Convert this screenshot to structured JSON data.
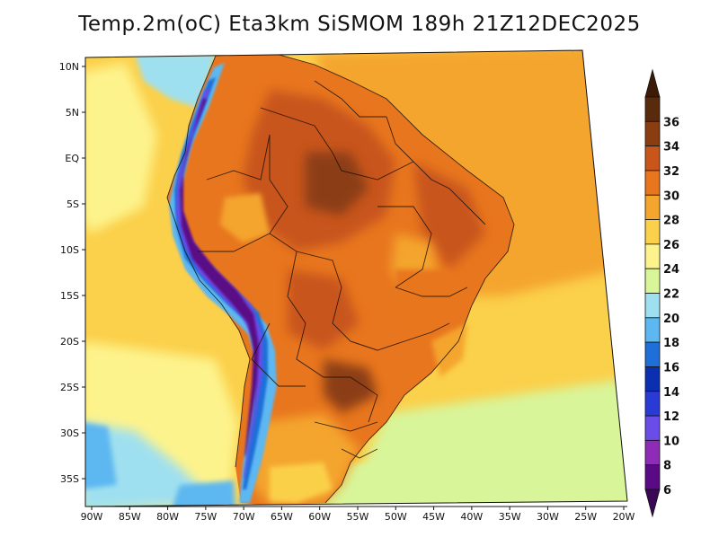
{
  "title": "Temp.2m(oC) Eta3km SiSMOM 189h 21Z12DEC2025",
  "map": {
    "lon_range": [
      -91,
      -19
    ],
    "lat_range": [
      -38,
      12
    ],
    "x_ticks": [
      {
        "lon": -90,
        "label": "90W"
      },
      {
        "lon": -85,
        "label": "85W"
      },
      {
        "lon": -80,
        "label": "80W"
      },
      {
        "lon": -75,
        "label": "75W"
      },
      {
        "lon": -70,
        "label": "70W"
      },
      {
        "lon": -65,
        "label": "65W"
      },
      {
        "lon": -60,
        "label": "60W"
      },
      {
        "lon": -55,
        "label": "55W"
      },
      {
        "lon": -50,
        "label": "50W"
      },
      {
        "lon": -45,
        "label": "45W"
      },
      {
        "lon": -40,
        "label": "40W"
      },
      {
        "lon": -35,
        "label": "35W"
      },
      {
        "lon": -30,
        "label": "30W"
      },
      {
        "lon": -25,
        "label": "25W"
      },
      {
        "lon": -20,
        "label": "20W"
      }
    ],
    "y_ticks": [
      {
        "lat": 10,
        "label": "10N"
      },
      {
        "lat": 5,
        "label": "5N"
      },
      {
        "lat": 0,
        "label": "EQ"
      },
      {
        "lat": -5,
        "label": "5S"
      },
      {
        "lat": -10,
        "label": "10S"
      },
      {
        "lat": -15,
        "label": "15S"
      },
      {
        "lat": -20,
        "label": "20S"
      },
      {
        "lat": -25,
        "label": "25S"
      },
      {
        "lat": -30,
        "label": "30S"
      },
      {
        "lat": -35,
        "label": "35S"
      }
    ]
  },
  "colorbar": {
    "levels": [
      {
        "label": "36",
        "color": "#5a2a0c"
      },
      {
        "label": "34",
        "color": "#8b3d12"
      },
      {
        "label": "32",
        "color": "#c8551a"
      },
      {
        "label": "30",
        "color": "#e8761e"
      },
      {
        "label": "28",
        "color": "#f4a52e"
      },
      {
        "label": "26",
        "color": "#fbd04a"
      },
      {
        "label": "24",
        "color": "#fdf38c"
      },
      {
        "label": "22",
        "color": "#d8f59a"
      },
      {
        "label": "20",
        "color": "#9fe0f0"
      },
      {
        "label": "18",
        "color": "#5db7f0"
      },
      {
        "label": "16",
        "color": "#1e6fd8"
      },
      {
        "label": "14",
        "color": "#0a2fb0"
      },
      {
        "label": "12",
        "color": "#2a3ad6"
      },
      {
        "label": "10",
        "color": "#6a4ce8"
      },
      {
        "label": "8",
        "color": "#8e2cb8"
      },
      {
        "label": "6",
        "color": "#5a0a84"
      }
    ],
    "top_arrow_color": "#3d1a06",
    "bottom_arrow_color": "#3a0656"
  }
}
